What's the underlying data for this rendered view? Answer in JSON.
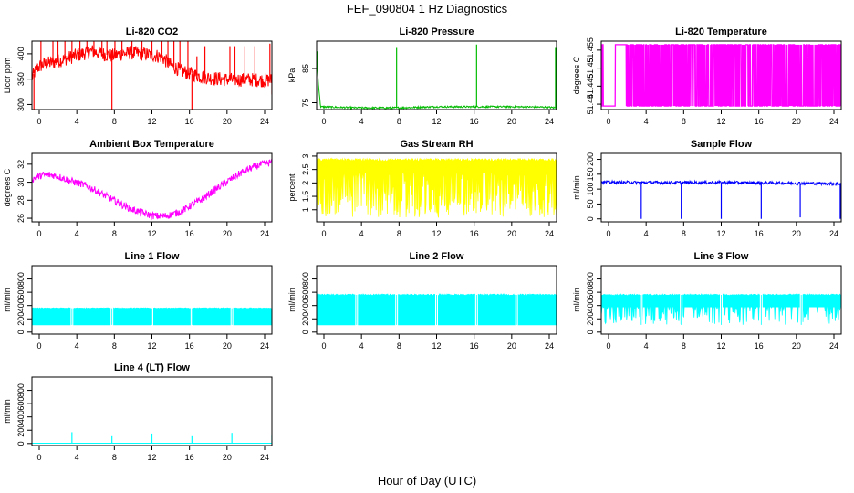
{
  "title": "FEF_090804  1 Hz Diagnostics",
  "xlabel": "Hour of Day (UTC)",
  "chart_data": [
    {
      "type": "line",
      "id": "co2",
      "title": "Li-820 CO2",
      "ylabel": "Licor ppm",
      "color": "#ff0000",
      "xlim": [
        0,
        24
      ],
      "ylim": [
        290,
        425
      ],
      "xticks": [
        0,
        4,
        8,
        12,
        16,
        20,
        24
      ],
      "yticks": [
        300,
        350,
        400
      ],
      "series": [
        {
          "x": [
            0,
            0.5,
            1,
            2,
            3,
            4,
            5,
            6,
            7,
            8,
            9,
            10,
            11,
            12,
            13,
            13.5,
            14,
            15,
            16,
            17,
            18,
            19,
            20,
            21,
            22,
            23,
            24
          ],
          "values": [
            352,
            372,
            378,
            383,
            388,
            394,
            400,
            405,
            400,
            396,
            400,
            402,
            400,
            398,
            394,
            384,
            376,
            366,
            360,
            355,
            352,
            350,
            349,
            349,
            349,
            348,
            348
          ]
        }
      ],
      "noise": 14,
      "spikes": [
        [
          0.2,
          260
        ],
        [
          0.9,
          425
        ],
        [
          2.1,
          425
        ],
        [
          2.6,
          425
        ],
        [
          3.3,
          425
        ],
        [
          4.0,
          425
        ],
        [
          4.8,
          425
        ],
        [
          5.5,
          425
        ],
        [
          6.2,
          425
        ],
        [
          7.0,
          425
        ],
        [
          7.5,
          425
        ],
        [
          8.0,
          285
        ],
        [
          8.3,
          425
        ],
        [
          9.0,
          425
        ],
        [
          10.0,
          425
        ],
        [
          11.0,
          425
        ],
        [
          12.0,
          425
        ],
        [
          13.0,
          425
        ],
        [
          13.6,
          425
        ],
        [
          14.2,
          425
        ],
        [
          14.8,
          425
        ],
        [
          15.6,
          425
        ],
        [
          16.0,
          290
        ],
        [
          16.5,
          395
        ],
        [
          17.3,
          415
        ],
        [
          19.8,
          415
        ],
        [
          20.3,
          415
        ],
        [
          21.3,
          415
        ],
        [
          22.3,
          415
        ],
        [
          23.8,
          420
        ],
        [
          24.0,
          320
        ]
      ]
    },
    {
      "type": "line",
      "id": "pressure",
      "title": "Li-820 Pressure",
      "ylabel": "kPa",
      "color": "#00bb00",
      "xlim": [
        0,
        24
      ],
      "ylim": [
        73,
        93
      ],
      "xticks": [
        0,
        4,
        8,
        12,
        16,
        20,
        24
      ],
      "yticks": [
        75,
        85
      ],
      "series": [
        {
          "x": [
            0,
            0.2,
            0.4,
            4,
            8,
            12,
            16,
            20,
            23,
            24
          ],
          "values": [
            88,
            80,
            73.8,
            73.5,
            73.5,
            73.8,
            73.8,
            73.8,
            73.7,
            73.5
          ]
        }
      ],
      "noise": 0.25,
      "spikes": [
        [
          0.05,
          90
        ],
        [
          8.0,
          91
        ],
        [
          16.0,
          92
        ],
        [
          23.9,
          91
        ]
      ]
    },
    {
      "type": "flicker",
      "id": "licor_temp",
      "title": "Li-820 Temperature",
      "ylabel": "degrees C",
      "color": "#ff00ff",
      "xlim": [
        0,
        24
      ],
      "ylim": [
        51.4385,
        51.4575
      ],
      "xticks": [
        0,
        4,
        8,
        12,
        16,
        20,
        24
      ],
      "yticks": [
        51.44,
        51.445,
        51.45,
        51.455
      ],
      "flicker": {
        "low": 51.4395,
        "high": 51.4565,
        "density": [
          [
            0,
            24,
            0.05
          ],
          [
            2.5,
            13,
            0.55
          ],
          [
            13,
            16,
            0.35
          ],
          [
            16,
            24,
            0.55
          ]
        ]
      }
    },
    {
      "type": "line",
      "id": "ambient",
      "title": "Ambient Box Temperature",
      "ylabel": "degrees C",
      "color": "#ff00ff",
      "xlim": [
        0,
        24
      ],
      "ylim": [
        25.6,
        33.2
      ],
      "xticks": [
        0,
        4,
        8,
        12,
        16,
        20,
        24
      ],
      "yticks": [
        26,
        28,
        30,
        32
      ],
      "series": [
        {
          "x": [
            0,
            1,
            2,
            3,
            4,
            5,
            6,
            7,
            8,
            9,
            10,
            11,
            12,
            13,
            14,
            15,
            16,
            17,
            18,
            19,
            20,
            21,
            22,
            23,
            24
          ],
          "values": [
            30.3,
            30.8,
            30.8,
            30.5,
            30.1,
            29.8,
            29.3,
            28.7,
            28.1,
            27.5,
            27.0,
            26.6,
            26.3,
            26.2,
            26.4,
            26.8,
            27.5,
            28.1,
            28.9,
            29.7,
            30.4,
            31.1,
            31.6,
            32.0,
            32.2
          ]
        }
      ],
      "noise": 0.4
    },
    {
      "type": "band",
      "id": "rh",
      "title": "Gas Stream RH",
      "ylabel": "percent",
      "color": "#ffff00",
      "xlim": [
        0,
        24
      ],
      "ylim": [
        0.55,
        3.1
      ],
      "xticks": [
        0,
        4,
        8,
        12,
        16,
        20,
        24
      ],
      "yticks": [
        1.0,
        1.5,
        2.0,
        2.5,
        3.0
      ],
      "band": {
        "upper": 2.85,
        "lower": 0.7,
        "base_lower": 2.4,
        "dip_prob": 0.7
      }
    },
    {
      "type": "line",
      "id": "sample_flow",
      "title": "Sample Flow",
      "ylabel": "ml/min",
      "color": "#0000ff",
      "xlim": [
        0,
        24
      ],
      "ylim": [
        -10,
        220
      ],
      "xticks": [
        0,
        4,
        8,
        12,
        16,
        20,
        24
      ],
      "yticks": [
        0,
        50,
        100,
        150,
        200
      ],
      "series": [
        {
          "x": [
            0,
            4,
            8,
            12,
            16,
            20,
            24
          ],
          "values": [
            123,
            122,
            122,
            122,
            121,
            120,
            118
          ]
        }
      ],
      "noise": 5,
      "spikes": [
        [
          4.0,
          0
        ],
        [
          8.0,
          0
        ],
        [
          12.0,
          0
        ],
        [
          16.0,
          0
        ],
        [
          19.9,
          5
        ],
        [
          23.9,
          0
        ]
      ]
    },
    {
      "type": "band",
      "id": "line1",
      "title": "Line 1 Flow",
      "ylabel": "ml/min",
      "color": "#00ffff",
      "xlim": [
        0,
        24
      ],
      "ylim": [
        -30,
        1000
      ],
      "xticks": [
        0,
        4,
        8,
        12,
        16,
        20,
        24
      ],
      "yticks": [
        0,
        200,
        400,
        600,
        800
      ],
      "band": {
        "upper": 360,
        "lower": 110,
        "base_lower": 110,
        "dip_prob": 0
      },
      "gaps": [
        4,
        8,
        12,
        16,
        20
      ],
      "spikes": [
        [
          24.0,
          260
        ]
      ]
    },
    {
      "type": "band",
      "id": "line2",
      "title": "Line 2 Flow",
      "ylabel": "ml/min",
      "color": "#00ffff",
      "xlim": [
        0,
        24
      ],
      "ylim": [
        -30,
        1000
      ],
      "xticks": [
        0,
        4,
        8,
        12,
        16,
        20,
        24
      ],
      "yticks": [
        0,
        200,
        400,
        600,
        800
      ],
      "band": {
        "upper": 560,
        "lower": 110,
        "base_lower": 110,
        "dip_prob": 0
      },
      "gaps": [
        4,
        8,
        12,
        16,
        20
      ]
    },
    {
      "type": "band",
      "id": "line3",
      "title": "Line 3 Flow",
      "ylabel": "ml/min",
      "color": "#00ffff",
      "xlim": [
        0,
        24
      ],
      "ylim": [
        -30,
        1000
      ],
      "xticks": [
        0,
        4,
        8,
        12,
        16,
        20,
        24
      ],
      "yticks": [
        0,
        200,
        400,
        600,
        800
      ],
      "band": {
        "upper": 560,
        "lower": 110,
        "base_lower": 380,
        "dip_prob": 0.3
      },
      "gaps": [
        4,
        8,
        12,
        16,
        20
      ]
    },
    {
      "type": "line",
      "id": "line4",
      "title": "Line 4 (LT) Flow",
      "ylabel": "ml/min",
      "color": "#00ffff",
      "xlim": [
        0,
        24
      ],
      "ylim": [
        -30,
        1000
      ],
      "xticks": [
        0,
        4,
        8,
        12,
        16,
        20,
        24
      ],
      "yticks": [
        0,
        200,
        400,
        600,
        800
      ],
      "series": [
        {
          "x": [
            0,
            24
          ],
          "values": [
            5,
            5
          ]
        }
      ],
      "noise": 0,
      "spikes": [
        [
          4.0,
          170
        ],
        [
          8.0,
          110
        ],
        [
          12.0,
          150
        ],
        [
          16.0,
          110
        ],
        [
          20.0,
          160
        ],
        [
          24.0,
          120
        ]
      ]
    }
  ]
}
